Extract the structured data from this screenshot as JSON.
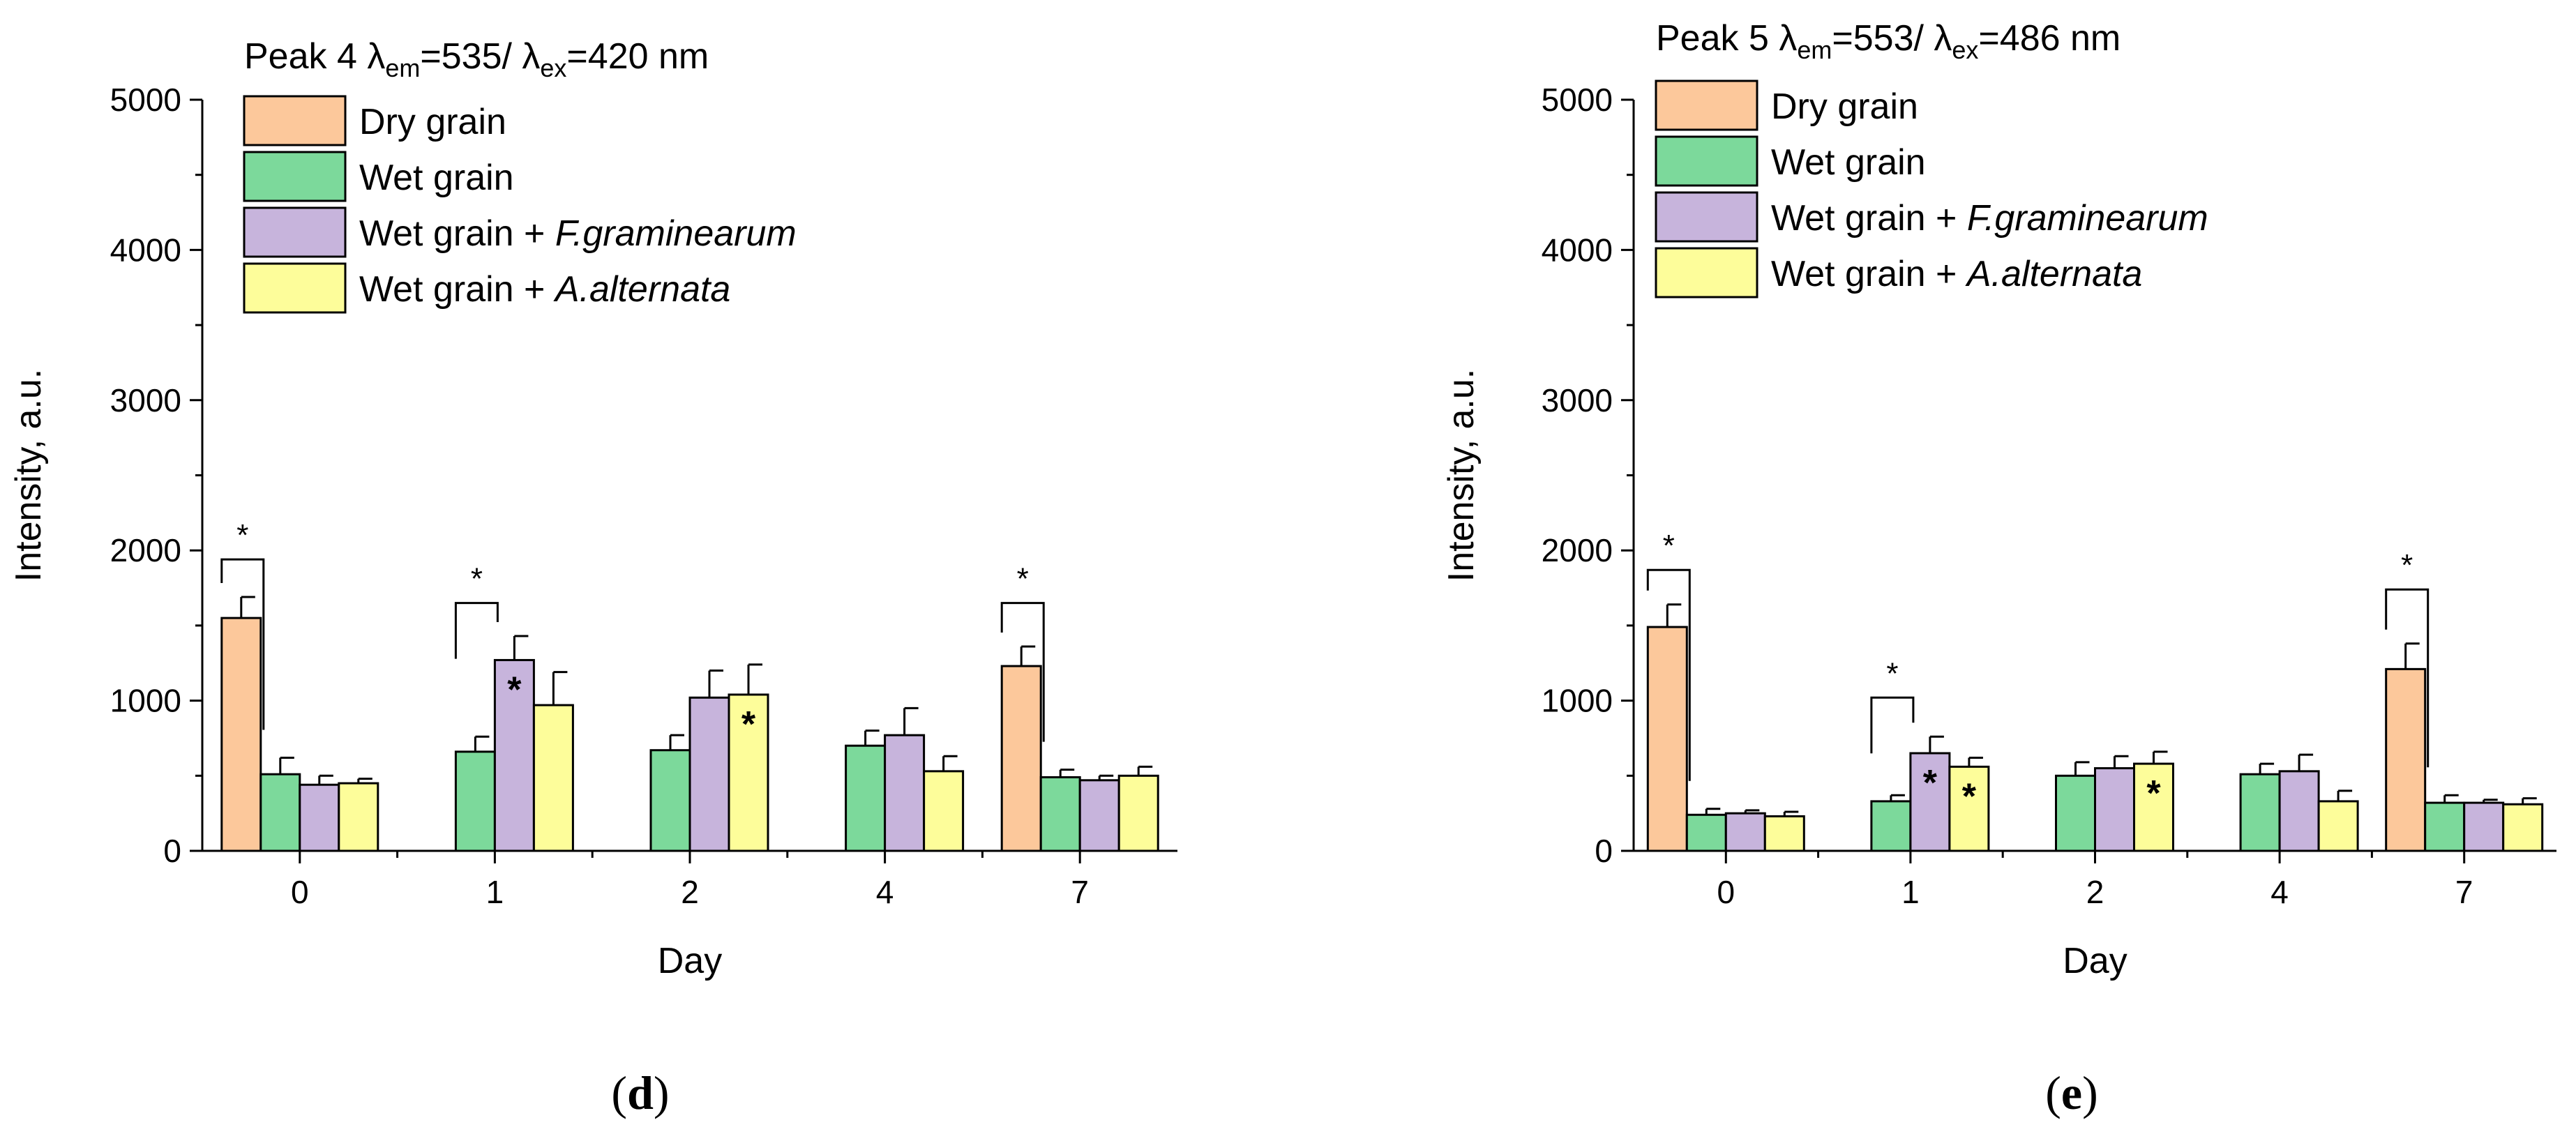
{
  "chart_data": [
    {
      "type": "bar",
      "panel": "d",
      "panel_label_open": "(",
      "panel_label_letter": "d",
      "panel_label_close": ")",
      "title_prefix": "Peak 4 λ",
      "title_em_sub": "em",
      "title_mid": "=535/ λ",
      "title_ex_sub": "ex",
      "title_suffix": "=420 nm",
      "xlabel": "Day",
      "ylabel": "Intensity, a.u.",
      "ylim": [
        0,
        5000
      ],
      "yticks": [
        "0",
        "1000",
        "2000",
        "3000",
        "4000",
        "5000"
      ],
      "categories": [
        "0",
        "1",
        "2",
        "4",
        "7"
      ],
      "legend": [
        {
          "plain": "Dry grain",
          "italic": ""
        },
        {
          "plain": "Wet grain",
          "italic": ""
        },
        {
          "plain": "Wet grain + ",
          "italic": "F.graminearum"
        },
        {
          "plain": "Wet grain + ",
          "italic": "A.alternata"
        }
      ],
      "series": [
        {
          "name": "Dry grain",
          "color": "#fcc89b",
          "values": [
            1550,
            null,
            null,
            null,
            1230
          ],
          "errors": [
            140,
            null,
            null,
            null,
            130
          ]
        },
        {
          "name": "Wet grain",
          "color": "#7cd99b",
          "values": [
            510,
            660,
            670,
            700,
            490
          ],
          "errors": [
            110,
            100,
            100,
            100,
            50
          ]
        },
        {
          "name": "Wet grain + F.graminearum",
          "color": "#c7b4dc",
          "values": [
            440,
            1270,
            1020,
            770,
            470
          ],
          "errors": [
            60,
            160,
            180,
            180,
            30
          ]
        },
        {
          "name": "Wet grain + A.alternata",
          "color": "#fdfd9a",
          "values": [
            450,
            970,
            1040,
            530,
            500
          ],
          "errors": [
            30,
            220,
            200,
            100,
            60
          ]
        }
      ],
      "significance_brackets": [
        {
          "category": "0",
          "label": "*",
          "y": 1940
        },
        {
          "category": "1",
          "label": "*",
          "y": 1650
        },
        {
          "category": "7",
          "label": "*",
          "y": 1650
        }
      ],
      "bar_stars": [
        {
          "category": "1",
          "series": 2,
          "label": "*"
        },
        {
          "category": "2",
          "series": 3,
          "label": "*"
        }
      ]
    },
    {
      "type": "bar",
      "panel": "e",
      "panel_label_open": "(",
      "panel_label_letter": "e",
      "panel_label_close": ")",
      "title_prefix": "Peak 5 λ",
      "title_em_sub": "em",
      "title_mid": "=553/ λ",
      "title_ex_sub": "ex",
      "title_suffix": "=486 nm",
      "xlabel": "Day",
      "ylabel": "Intensity, a.u.",
      "ylim": [
        0,
        5000
      ],
      "yticks": [
        "0",
        "1000",
        "2000",
        "3000",
        "4000",
        "5000"
      ],
      "categories": [
        "0",
        "1",
        "2",
        "4",
        "7"
      ],
      "legend": [
        {
          "plain": "Dry grain",
          "italic": ""
        },
        {
          "plain": "Wet grain",
          "italic": ""
        },
        {
          "plain": "Wet grain + ",
          "italic": "F.graminearum"
        },
        {
          "plain": "Wet grain + ",
          "italic": "A.alternata"
        }
      ],
      "series": [
        {
          "name": "Dry grain",
          "color": "#fcc89b",
          "values": [
            1490,
            null,
            null,
            null,
            1210
          ],
          "errors": [
            150,
            null,
            null,
            null,
            170
          ]
        },
        {
          "name": "Wet grain",
          "color": "#7cd99b",
          "values": [
            240,
            330,
            500,
            510,
            320
          ],
          "errors": [
            40,
            40,
            90,
            70,
            50
          ]
        },
        {
          "name": "Wet grain + F.graminearum",
          "color": "#c7b4dc",
          "values": [
            250,
            650,
            550,
            530,
            320
          ],
          "errors": [
            20,
            110,
            80,
            110,
            20
          ]
        },
        {
          "name": "Wet grain + A.alternata",
          "color": "#fdfd9a",
          "values": [
            230,
            560,
            580,
            330,
            310
          ],
          "errors": [
            30,
            60,
            80,
            70,
            40
          ]
        }
      ],
      "significance_brackets": [
        {
          "category": "0",
          "label": "*",
          "y": 1870
        },
        {
          "category": "1",
          "label": "*",
          "y": 1020
        },
        {
          "category": "7",
          "label": "*",
          "y": 1740
        }
      ],
      "bar_stars": [
        {
          "category": "1",
          "series": 2,
          "label": "*"
        },
        {
          "category": "1",
          "series": 3,
          "label": "*"
        },
        {
          "category": "2",
          "series": 3,
          "label": "*"
        }
      ]
    }
  ]
}
